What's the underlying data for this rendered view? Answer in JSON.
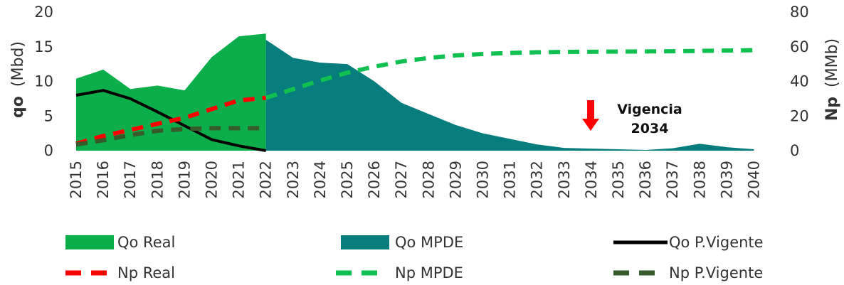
{
  "chart_data": {
    "type": "area",
    "categories": [
      "2015",
      "2016",
      "2017",
      "2018",
      "2019",
      "2020",
      "2021",
      "2022",
      "2023",
      "2024",
      "2025",
      "2026",
      "2027",
      "2028",
      "2029",
      "2030",
      "2031",
      "2032",
      "2033",
      "2034",
      "2035",
      "2036",
      "2037",
      "2038",
      "2039",
      "2040"
    ],
    "y_left": {
      "label_bold": "qo",
      "label_unit": "(Mbd)",
      "ticks": [
        "0",
        "5",
        "10",
        "15",
        "20"
      ],
      "range": [
        0,
        20
      ]
    },
    "y_right": {
      "label_bold": "Np",
      "label_unit": "(MMb)",
      "ticks": [
        "0",
        "20",
        "40",
        "60",
        "80"
      ],
      "range": [
        0,
        80
      ]
    },
    "grid": false,
    "legend_position": "bottom",
    "series": [
      {
        "name": "Qo Real",
        "type": "area",
        "axis": "left",
        "color": "#0BAE4A",
        "x": [
          "2015",
          "2016",
          "2017",
          "2018",
          "2019",
          "2020",
          "2021",
          "2022"
        ],
        "values": [
          10.4,
          11.7,
          8.9,
          9.4,
          8.7,
          13.5,
          16.5,
          16.9
        ]
      },
      {
        "name": "Qo MPDE",
        "type": "area",
        "axis": "left",
        "color": "#077D7D",
        "x": [
          "2022",
          "2023",
          "2024",
          "2025",
          "2026",
          "2027",
          "2028",
          "2029",
          "2030",
          "2031",
          "2032",
          "2033",
          "2034",
          "2035",
          "2036",
          "2037",
          "2038",
          "2039",
          "2040"
        ],
        "values": [
          16.0,
          13.4,
          12.7,
          12.5,
          10.0,
          6.9,
          5.3,
          3.7,
          2.5,
          1.7,
          0.9,
          0.4,
          0.3,
          0.2,
          0.1,
          0.35,
          1.0,
          0.5,
          0.2
        ]
      },
      {
        "name": "Qo P.Vigente",
        "type": "line",
        "axis": "left",
        "color": "#000000",
        "dash": "solid",
        "x": [
          "2015",
          "2016",
          "2017",
          "2018",
          "2019",
          "2020",
          "2021",
          "2022"
        ],
        "values": [
          8.0,
          8.7,
          7.5,
          5.6,
          3.6,
          1.6,
          0.7,
          0.0
        ]
      },
      {
        "name": "Np Real",
        "type": "line",
        "axis": "right",
        "color": "#FF0000",
        "dash": "dashed",
        "x": [
          "2015",
          "2016",
          "2017",
          "2018",
          "2019",
          "2020",
          "2021",
          "2022"
        ],
        "values": [
          4.0,
          8.5,
          12.0,
          15.5,
          19.0,
          24.0,
          29.0,
          30.5
        ]
      },
      {
        "name": "Np MPDE",
        "type": "line",
        "axis": "right",
        "color": "#11C050",
        "dash": "dashed",
        "x": [
          "2022",
          "2023",
          "2024",
          "2025",
          "2026",
          "2027",
          "2028",
          "2029",
          "2030",
          "2031",
          "2032",
          "2033",
          "2034",
          "2035",
          "2036",
          "2037",
          "2038",
          "2039",
          "2040"
        ],
        "values": [
          30.5,
          35.5,
          40.5,
          45.0,
          48.5,
          51.5,
          53.5,
          55.0,
          55.8,
          56.4,
          56.8,
          57.0,
          57.1,
          57.2,
          57.3,
          57.4,
          57.6,
          57.8,
          58.0
        ]
      },
      {
        "name": "Np P.Vigente",
        "type": "line",
        "axis": "right",
        "color": "#375A2B",
        "dash": "dashed",
        "x": [
          "2015",
          "2016",
          "2017",
          "2018",
          "2019",
          "2020",
          "2021",
          "2022"
        ],
        "values": [
          3.5,
          6.0,
          9.0,
          11.5,
          12.5,
          13.0,
          13.0,
          13.0
        ]
      }
    ],
    "annotations": [
      {
        "text_line1": "Vigencia",
        "text_line2": "2034",
        "x": "2034",
        "arrow_color": "#FF0000"
      }
    ]
  }
}
